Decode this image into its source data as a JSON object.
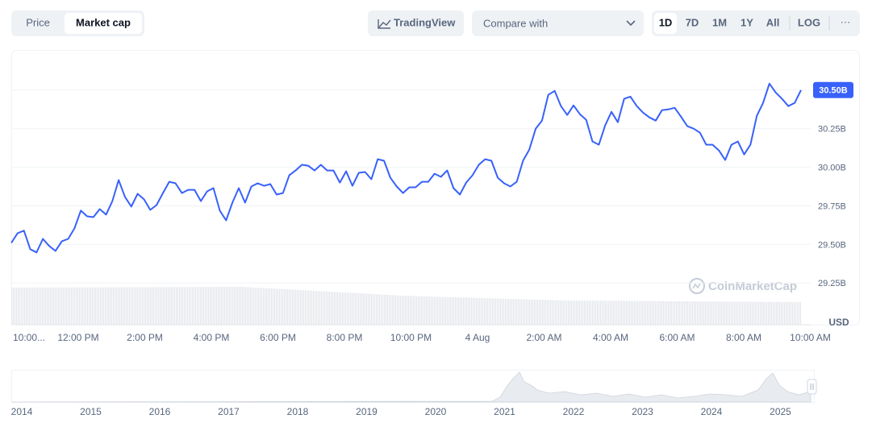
{
  "toolbar": {
    "tabs": [
      "Price",
      "Market cap"
    ],
    "tradingview": "TradingView",
    "compare": "Compare with",
    "ranges": [
      "1D",
      "7D",
      "1M",
      "1Y",
      "All"
    ],
    "log": "LOG",
    "more": "···"
  },
  "chart_data": {
    "type": "line",
    "color": "#3861fb",
    "values": [
      29.51,
      29.573,
      29.589,
      29.469,
      29.448,
      29.536,
      29.49,
      29.458,
      29.521,
      29.536,
      29.604,
      29.719,
      29.682,
      29.677,
      29.729,
      29.693,
      29.781,
      29.917,
      29.807,
      29.745,
      29.828,
      29.792,
      29.724,
      29.755,
      29.833,
      29.906,
      29.896,
      29.833,
      29.854,
      29.854,
      29.781,
      29.844,
      29.865,
      29.719,
      29.656,
      29.771,
      29.865,
      29.771,
      29.875,
      29.896,
      29.88,
      29.891,
      29.823,
      29.833,
      29.948,
      29.979,
      30.016,
      30.01,
      29.979,
      30.016,
      29.979,
      29.979,
      29.901,
      29.974,
      29.88,
      29.964,
      29.969,
      29.922,
      30.052,
      30.042,
      29.932,
      29.875,
      29.833,
      29.87,
      29.87,
      29.906,
      29.906,
      29.958,
      29.938,
      29.979,
      29.865,
      29.823,
      29.901,
      29.948,
      30.016,
      30.052,
      30.042,
      29.932,
      29.896,
      29.875,
      29.906,
      30.042,
      30.115,
      30.25,
      30.302,
      30.469,
      30.495,
      30.396,
      30.339,
      30.401,
      30.344,
      30.307,
      30.167,
      30.146,
      30.271,
      30.359,
      30.292,
      30.443,
      30.458,
      30.396,
      30.354,
      30.323,
      30.302,
      30.37,
      30.375,
      30.385,
      30.328,
      30.266,
      30.25,
      30.224,
      30.146,
      30.146,
      30.109,
      30.047,
      30.146,
      30.167,
      30.083,
      30.146,
      30.333,
      30.417,
      30.542,
      30.484,
      30.443,
      30.396,
      30.417,
      30.5
    ],
    "current_label": "30.50B",
    "ylim": [
      28.98,
      30.76
    ],
    "yticks": [
      {
        "value": 29.25,
        "label": "29.25B"
      },
      {
        "value": 29.5,
        "label": "29.50B"
      },
      {
        "value": 29.75,
        "label": "29.75B"
      },
      {
        "value": 30,
        "label": "30.00B"
      },
      {
        "value": 30.25,
        "label": "30.25B"
      },
      {
        "value": 30.5,
        "label": "30.50B"
      }
    ],
    "x_labels": [
      "10:00...",
      "12:00 PM",
      "2:00 PM",
      "4:00 PM",
      "6:00 PM",
      "8:00 PM",
      "10:00 PM",
      "4 Aug",
      "2:00 AM",
      "4:00 AM",
      "6:00 AM",
      "8:00 AM",
      "10:00 AM"
    ],
    "unit": "USD",
    "grid": true,
    "watermark": "CoinMarketCap"
  },
  "navigator": {
    "years": [
      "2014",
      "2015",
      "2016",
      "2017",
      "2018",
      "2019",
      "2020",
      "2021",
      "2022",
      "2023",
      "2024",
      "2025"
    ]
  }
}
